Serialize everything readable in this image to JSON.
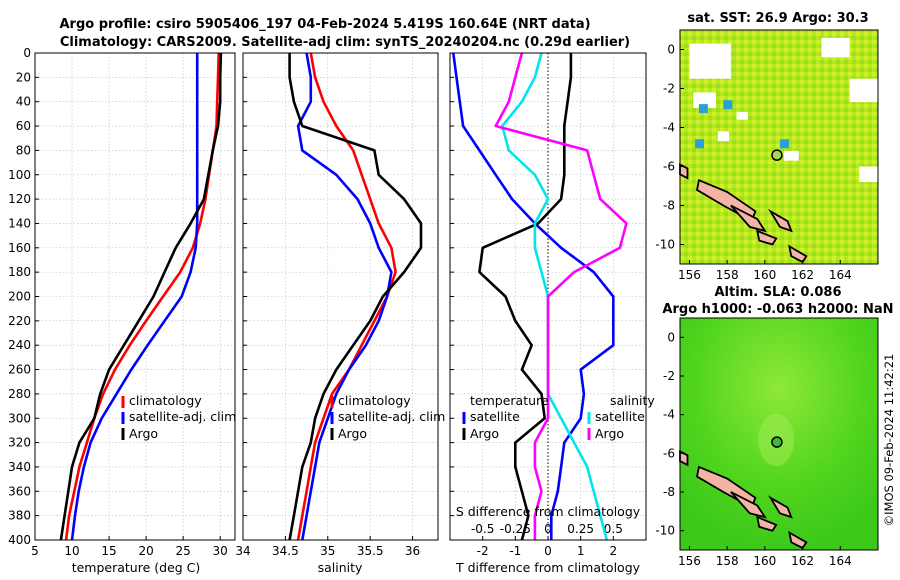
{
  "header": {
    "line1": "Argo profile: csiro 5905406_197 04-Feb-2024 5.419S 160.64E (NRT data)",
    "line2": "Climatology: CARS2009. Satellite-adj clim: synTS_20240204.nc (0.29d earlier)"
  },
  "copyright": "©IMOS 09-Feb-2024 11:42:21",
  "colors": {
    "climatology": "#ff0000",
    "satellite": "#0000ff",
    "argo": "#000000",
    "salinity_diff": "#ff00ff",
    "sat_salinity": "#00e5ee"
  },
  "chart_data": [
    {
      "id": "temperature",
      "type": "line",
      "xlabel": "temperature (deg C)",
      "ylabel": "",
      "xlim": [
        5,
        32
      ],
      "ylim": [
        0,
        400
      ],
      "xticks": [
        "5",
        "10",
        "15",
        "20",
        "25",
        "30"
      ],
      "yticks": [
        "0",
        "20",
        "40",
        "60",
        "80",
        "100",
        "120",
        "140",
        "160",
        "180",
        "200",
        "220",
        "240",
        "260",
        "280",
        "300",
        "320",
        "340",
        "360",
        "380",
        "400"
      ],
      "legend": [
        "climatology",
        "satellite-adj. clim",
        "Argo"
      ],
      "depth": [
        0,
        20,
        40,
        60,
        80,
        100,
        120,
        140,
        160,
        180,
        200,
        220,
        240,
        260,
        280,
        300,
        320,
        340,
        360,
        380,
        400
      ],
      "series": [
        {
          "name": "climatology",
          "color": "red",
          "values": [
            29.8,
            29.7,
            29.6,
            29.5,
            29.0,
            28.5,
            28.0,
            27.3,
            26.3,
            24.6,
            22.3,
            20.0,
            17.8,
            15.8,
            14.2,
            13.0,
            12.0,
            11.0,
            10.3,
            9.6,
            9.2
          ]
        },
        {
          "name": "satellite-adj. clim",
          "color": "blue",
          "values": [
            26.9,
            26.9,
            26.9,
            26.9,
            26.9,
            26.9,
            26.9,
            26.9,
            26.7,
            26.0,
            24.8,
            22.5,
            20.2,
            18.0,
            16.0,
            14.0,
            12.5,
            11.6,
            10.9,
            10.4,
            10.0
          ]
        },
        {
          "name": "Argo",
          "color": "black",
          "values": [
            30.1,
            30.0,
            30.0,
            29.7,
            29.0,
            28.4,
            27.8,
            26.0,
            24.0,
            22.5,
            21.0,
            19.0,
            17.0,
            15.0,
            13.8,
            13.0,
            11.0,
            10.0,
            9.5,
            9.0,
            8.5
          ]
        }
      ]
    },
    {
      "id": "salinity",
      "type": "line",
      "xlabel": "salinity",
      "xlim": [
        34,
        36.3
      ],
      "ylim": [
        0,
        400
      ],
      "xticks": [
        "34",
        "34.5",
        "35",
        "35.5",
        "36"
      ],
      "legend": [
        "climatology",
        "satellite-adj. clim",
        "Argo"
      ],
      "depth": [
        0,
        20,
        40,
        60,
        80,
        100,
        120,
        140,
        160,
        180,
        200,
        220,
        240,
        260,
        280,
        300,
        320,
        340,
        360,
        380,
        400
      ],
      "series": [
        {
          "name": "climatology",
          "color": "red",
          "values": [
            34.8,
            34.85,
            34.95,
            35.1,
            35.3,
            35.4,
            35.5,
            35.6,
            35.75,
            35.8,
            35.7,
            35.55,
            35.4,
            35.25,
            35.05,
            34.95,
            34.85,
            34.8,
            34.75,
            34.7,
            34.65
          ]
        },
        {
          "name": "satellite-adj. clim",
          "color": "blue",
          "values": [
            34.75,
            34.8,
            34.8,
            34.65,
            34.7,
            35.1,
            35.35,
            35.5,
            35.6,
            35.75,
            35.7,
            35.6,
            35.45,
            35.25,
            35.1,
            35.0,
            34.9,
            34.85,
            34.8,
            34.75,
            34.7
          ]
        },
        {
          "name": "Argo",
          "color": "black",
          "values": [
            34.55,
            34.55,
            34.6,
            34.7,
            35.55,
            35.6,
            35.9,
            36.1,
            36.1,
            35.9,
            35.65,
            35.5,
            35.3,
            35.1,
            34.95,
            34.85,
            34.8,
            34.7,
            34.65,
            34.6,
            34.55
          ]
        }
      ]
    },
    {
      "id": "differences",
      "type": "line",
      "xlabel": "T difference from climatology",
      "top_xlabel": "S difference from climatology",
      "xlim": [
        -3,
        3
      ],
      "ylim": [
        0,
        400
      ],
      "xticks": [
        "-2",
        "-1",
        "0",
        "1",
        "2"
      ],
      "top_xticks": [
        "-0.5",
        "-0.25",
        "0",
        "0.25",
        "0.5"
      ],
      "legend_titles": [
        "temperature",
        "salinity"
      ],
      "legend": [
        "satellite",
        "Argo",
        "satellite",
        "Argo"
      ],
      "depth": [
        0,
        20,
        40,
        60,
        80,
        100,
        120,
        140,
        160,
        180,
        200,
        220,
        240,
        260,
        280,
        300,
        320,
        340,
        360,
        380,
        400
      ],
      "series": [
        {
          "name": "T satellite",
          "color": "blue",
          "values": [
            -2.9,
            -2.8,
            -2.7,
            -2.6,
            -2.1,
            -1.6,
            -1.1,
            -0.4,
            0.4,
            1.4,
            2.0,
            2.0,
            2.0,
            1.0,
            1.1,
            1.0,
            0.5,
            0.4,
            0.3,
            0.1,
            0.1
          ]
        },
        {
          "name": "T Argo",
          "color": "black",
          "values": [
            0.7,
            0.7,
            0.6,
            0.5,
            0.5,
            0.5,
            0.4,
            -0.3,
            -2.0,
            -2.1,
            -1.3,
            -1.0,
            -0.5,
            -0.8,
            -0.2,
            -0.1,
            -1.0,
            -1.0,
            -0.8,
            -0.6,
            -0.8
          ]
        },
        {
          "name": "S satellite",
          "color": "cyan",
          "values": [
            -0.05,
            -0.1,
            -0.2,
            -0.35,
            -0.3,
            -0.1,
            0.0,
            -0.1,
            -0.1,
            -0.05,
            0.0,
            0.0,
            0.0,
            0.0,
            0.0,
            0.1,
            0.2,
            0.3,
            0.35,
            0.4,
            0.45
          ]
        },
        {
          "name": "S Argo",
          "color": "magenta",
          "values": [
            -0.2,
            -0.25,
            -0.3,
            -0.4,
            0.3,
            0.35,
            0.4,
            0.6,
            0.55,
            0.2,
            0.0,
            0.0,
            0.0,
            0.0,
            0.0,
            0.0,
            -0.1,
            -0.1,
            -0.05,
            -0.1,
            -0.1
          ]
        }
      ]
    },
    {
      "id": "sst_map",
      "type": "heatmap",
      "title": "sat. SST: 26.9 Argo: 30.3",
      "xlim": [
        155.5,
        166
      ],
      "ylim": [
        -11,
        1
      ],
      "xticks": [
        "156",
        "158",
        "160",
        "162",
        "164"
      ],
      "yticks": [
        "0",
        "-2",
        "-4",
        "-6",
        "-8",
        "-10"
      ],
      "float_position": {
        "lon": 160.64,
        "lat": -5.419
      }
    },
    {
      "id": "sla_map",
      "type": "heatmap",
      "title": "Altim. SLA: 0.086",
      "subtitle": "Argo h1000: -0.063 h2000: NaN",
      "xlim": [
        155.5,
        166
      ],
      "ylim": [
        -11,
        1
      ],
      "xticks": [
        "156",
        "158",
        "160",
        "162",
        "164"
      ],
      "yticks": [
        "0",
        "-2",
        "-4",
        "-6",
        "-8",
        "-10"
      ],
      "float_position": {
        "lon": 160.64,
        "lat": -5.419
      }
    }
  ]
}
